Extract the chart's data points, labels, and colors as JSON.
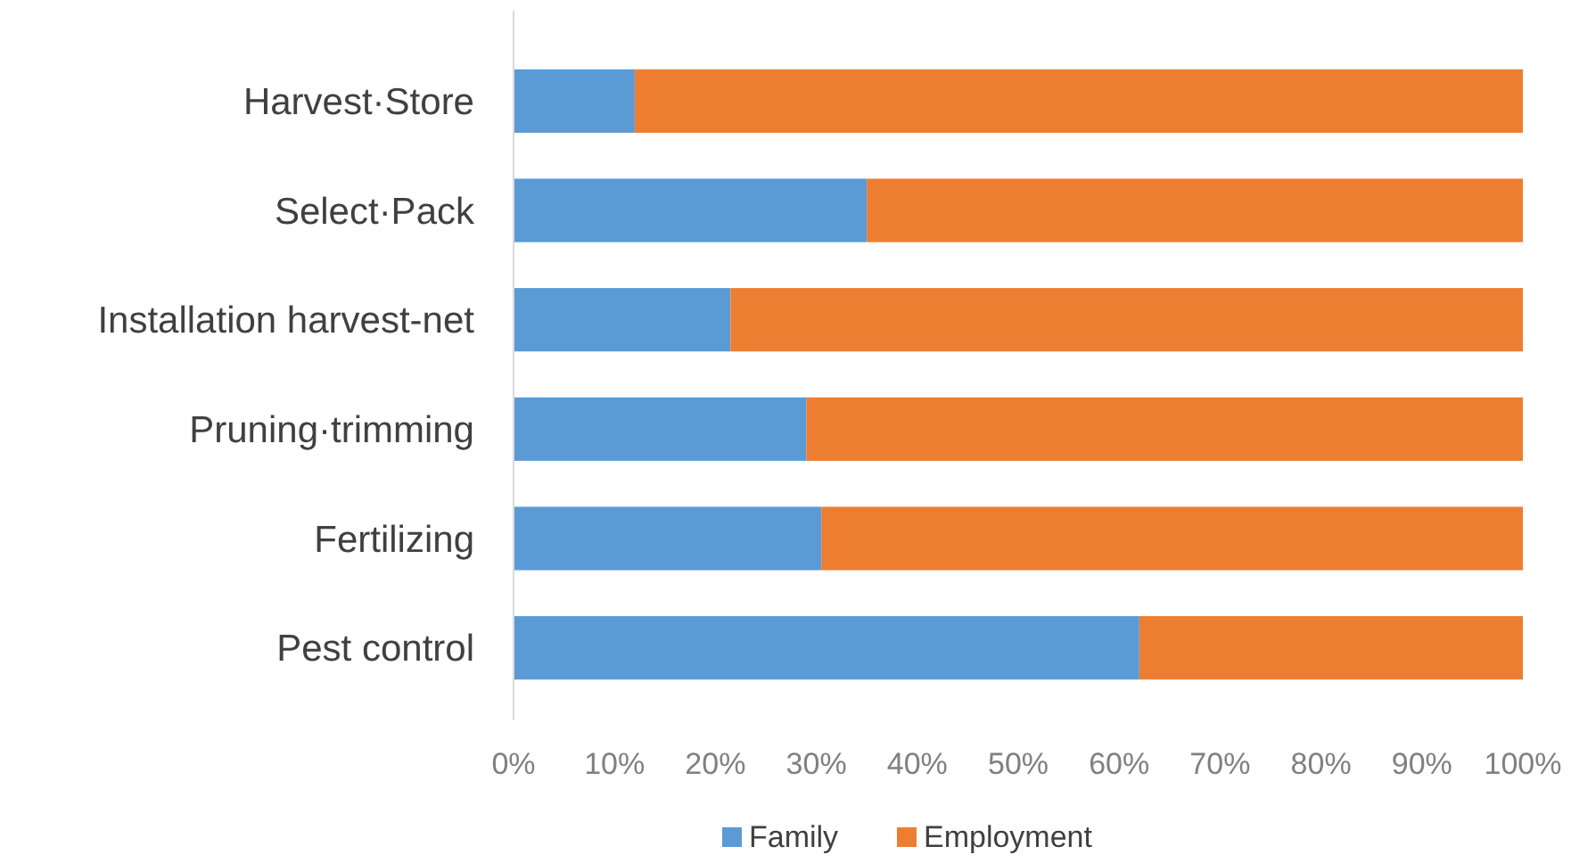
{
  "chart_data": {
    "type": "bar",
    "orientation": "horizontal",
    "stacked": true,
    "categories": [
      "Harvest·Store",
      "Select·Pack",
      "Installation harvest-net",
      "Pruning·trimming",
      "Fertilizing",
      "Pest control"
    ],
    "series": [
      {
        "name": "Family",
        "color": "#5b9bd5",
        "values": [
          12,
          35,
          21.5,
          29,
          30.5,
          62
        ]
      },
      {
        "name": "Employment",
        "color": "#ed7d31",
        "values": [
          88,
          65,
          78.5,
          71,
          69.5,
          38
        ]
      }
    ],
    "xlim": [
      0,
      100
    ],
    "xticks": [
      {
        "value": 0,
        "label": "0%"
      },
      {
        "value": 10,
        "label": "10%"
      },
      {
        "value": 20,
        "label": "20%"
      },
      {
        "value": 30,
        "label": "30%"
      },
      {
        "value": 40,
        "label": "40%"
      },
      {
        "value": 50,
        "label": "50%"
      },
      {
        "value": 60,
        "label": "60%"
      },
      {
        "value": 70,
        "label": "70%"
      },
      {
        "value": 80,
        "label": "80%"
      },
      {
        "value": 90,
        "label": "90%"
      },
      {
        "value": 100,
        "label": "100%"
      }
    ],
    "grid": false,
    "legend": "bottom"
  }
}
